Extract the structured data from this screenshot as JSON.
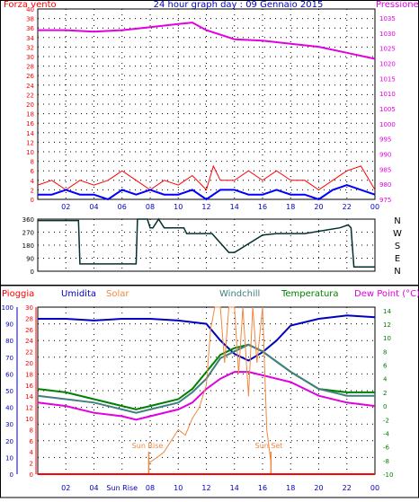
{
  "colors": {
    "wind": "#ff0000",
    "gust": "#0000ff",
    "pressure": "#e000e0",
    "direction": "#003030",
    "rain": "#ff0000",
    "humidity": "#0000c0",
    "solar": "#f08840",
    "windchill": "#408080",
    "temperature": "#008000",
    "dewpoint": "#e000e0",
    "grid": "#000000"
  },
  "header": {
    "left": "Forza vento",
    "center": "24 hour graph day : 09 Gennaio 2015",
    "right": "Pressione"
  },
  "hour_ticks": [
    "02",
    "04",
    "06",
    "08",
    "10",
    "12",
    "14",
    "16",
    "18",
    "20",
    "22",
    "00"
  ],
  "hour_ticks_bottom": [
    "02",
    "04",
    "Sun Rise",
    "08",
    "10",
    "12",
    "14",
    "16",
    "18",
    "20",
    "22",
    "00"
  ],
  "chart_data": [
    {
      "type": "line",
      "name": "wind-pressure",
      "left_axis": {
        "ticks": [
          0,
          2,
          4,
          6,
          8,
          10,
          12,
          14,
          16,
          18,
          20,
          22,
          24,
          26,
          28,
          30,
          32,
          34,
          36,
          38,
          40
        ],
        "range": [
          0,
          40
        ]
      },
      "right_axis": {
        "ticks": [
          975,
          980,
          985,
          990,
          995,
          1000,
          1005,
          1010,
          1015,
          1020,
          1025,
          1030,
          1035
        ],
        "range": [
          975,
          1038
        ]
      },
      "series": [
        {
          "name": "Pressione",
          "axis": "right",
          "x": [
            0,
            2,
            4,
            6,
            8,
            10,
            11,
            12,
            14,
            16,
            18,
            20,
            22,
            24
          ],
          "y": [
            1031,
            1031,
            1030.5,
            1031,
            1032,
            1033,
            1033.5,
            1031,
            1028,
            1027.5,
            1026.5,
            1025.5,
            1023.5,
            1021.5
          ]
        },
        {
          "name": "Forza vento",
          "axis": "left",
          "x": [
            0,
            1,
            2,
            3,
            4,
            5,
            6,
            7,
            8,
            9,
            10,
            11,
            12,
            12.5,
            13,
            14,
            15,
            16,
            17,
            18,
            19,
            20,
            21,
            22,
            23,
            24
          ],
          "y": [
            3,
            4,
            2,
            4,
            3,
            4,
            6,
            4,
            2,
            4,
            3,
            5,
            2,
            7,
            4,
            4,
            6,
            4,
            6,
            4,
            4,
            2,
            4,
            6,
            7,
            2
          ]
        },
        {
          "name": "gust",
          "axis": "left",
          "x": [
            0,
            1,
            2,
            3,
            4,
            5,
            5.5,
            6,
            7,
            8,
            9,
            10,
            11,
            12,
            13,
            14,
            15,
            16,
            17,
            18,
            19,
            20,
            21,
            22,
            23,
            24
          ],
          "y": [
            1,
            1,
            2,
            1,
            1,
            0,
            1,
            2,
            1,
            2,
            1,
            1,
            2,
            0,
            2,
            2,
            1,
            1,
            2,
            1,
            1,
            0,
            2,
            3,
            2,
            1
          ]
        }
      ]
    },
    {
      "type": "line",
      "name": "wind-direction",
      "y_ticks": [
        0,
        90,
        180,
        270,
        360
      ],
      "range": [
        0,
        360
      ],
      "labels": [
        "N",
        "W",
        "S",
        "E",
        "N"
      ],
      "series": [
        {
          "name": "direzione",
          "x": [
            0,
            2.9,
            3,
            7,
            7.1,
            7.8,
            8,
            8.2,
            8.6,
            9,
            10.4,
            10.6,
            11,
            12.2,
            12.4,
            13.6,
            14,
            16,
            17,
            18,
            19,
            21.5,
            22.1,
            22.3,
            22.5,
            24
          ],
          "y": [
            350,
            350,
            50,
            50,
            360,
            360,
            300,
            300,
            360,
            300,
            300,
            260,
            260,
            260,
            260,
            130,
            130,
            250,
            260,
            260,
            260,
            300,
            320,
            300,
            30,
            30
          ]
        }
      ]
    },
    {
      "type": "line",
      "name": "weather",
      "legend": [
        "Pioggia",
        "Umidita",
        "Solar",
        "Windchill",
        "Temperatura",
        "Dew Point (°C)"
      ],
      "left_axis": {
        "ticks": [
          0,
          10,
          20,
          30,
          40,
          50,
          60,
          70,
          80,
          90,
          100
        ],
        "range": [
          0,
          100
        ]
      },
      "left2_axis": {
        "ticks": [
          0,
          2,
          4,
          6,
          8,
          10,
          12,
          14,
          16,
          18,
          20,
          22,
          24,
          26,
          28,
          30
        ],
        "range": [
          0,
          30
        ]
      },
      "right_axis": {
        "ticks": [
          -10,
          -8,
          -6,
          -4,
          -2,
          0,
          2,
          4,
          6,
          8,
          10,
          12,
          14
        ],
        "range": [
          -10,
          14.5
        ]
      },
      "annotations": [
        "Sun Rise",
        "Sun Set"
      ],
      "series": [
        {
          "name": "Umidita",
          "axis": "left",
          "x": [
            0,
            2,
            4,
            6,
            8,
            10,
            11,
            12,
            13,
            14,
            15,
            16,
            17,
            18,
            20,
            22,
            24
          ],
          "y": [
            93,
            93,
            92,
            93,
            93,
            92,
            91,
            90,
            80,
            72,
            68,
            73,
            80,
            89,
            93,
            95,
            94
          ]
        },
        {
          "name": "Temperatura",
          "axis": "right",
          "x": [
            0,
            2,
            4,
            6,
            7,
            8,
            10,
            11,
            12,
            13,
            14,
            15,
            16,
            17,
            18,
            20,
            22,
            24
          ],
          "y": [
            2.5,
            2,
            1,
            0,
            -0.5,
            0,
            1,
            2.5,
            5,
            7.5,
            8.5,
            9,
            8,
            6.5,
            5,
            2.5,
            2,
            2
          ]
        },
        {
          "name": "Windchill",
          "axis": "right",
          "x": [
            0,
            2,
            4,
            6,
            7,
            8,
            10,
            11,
            12,
            13,
            14,
            15,
            16,
            17,
            18,
            20,
            22,
            24
          ],
          "y": [
            1.5,
            1,
            0.5,
            -0.5,
            -1,
            -0.5,
            0.5,
            2,
            4,
            7,
            8,
            9,
            8,
            6.5,
            5,
            2.5,
            1.5,
            1.5
          ]
        },
        {
          "name": "Dew Point (°C)",
          "axis": "right",
          "x": [
            0,
            2,
            4,
            6,
            7,
            8,
            10,
            11,
            12,
            13,
            14,
            15,
            16,
            17,
            18,
            20,
            22,
            24
          ],
          "y": [
            0.5,
            0,
            -1,
            -1.5,
            -2,
            -1.5,
            -0.5,
            0.5,
            2.5,
            4,
            5,
            5,
            4.5,
            4,
            3.5,
            1.5,
            0.5,
            0
          ]
        },
        {
          "name": "Solar",
          "axis": "left2",
          "x": [
            7.9,
            8.5,
            9,
            9.5,
            10,
            10.5,
            11,
            11.5,
            12,
            12.3,
            12.6,
            13,
            13.3,
            13.6,
            14,
            14.3,
            14.6,
            15,
            15.3,
            15.6,
            16,
            16.3,
            16.6
          ],
          "y": [
            2,
            3,
            4,
            6,
            8,
            7,
            10,
            12,
            16,
            26,
            30,
            30,
            20,
            30,
            30,
            18,
            30,
            14,
            30,
            20,
            30,
            8,
            2
          ]
        },
        {
          "name": "Pioggia",
          "axis": "left",
          "x": [
            0,
            24
          ],
          "y": [
            0,
            0
          ]
        }
      ]
    }
  ]
}
